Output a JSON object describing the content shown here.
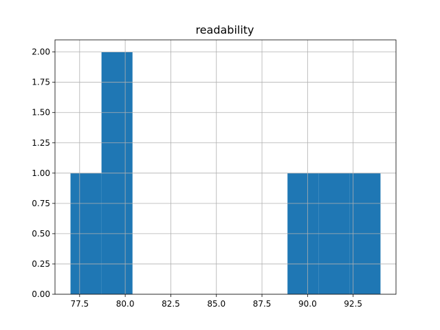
{
  "chart_data": {
    "type": "bar",
    "title": "readability",
    "xlabel": "",
    "ylabel": "",
    "xlim": [
      76.15,
      94.85
    ],
    "ylim": [
      0,
      2.1
    ],
    "grid": true,
    "bar_color": "#1f77b4",
    "bins": [
      {
        "start": 77.0,
        "end": 78.7,
        "count": 1
      },
      {
        "start": 78.7,
        "end": 80.4,
        "count": 2
      },
      {
        "start": 80.4,
        "end": 82.1,
        "count": 0
      },
      {
        "start": 82.1,
        "end": 83.8,
        "count": 0
      },
      {
        "start": 83.8,
        "end": 85.5,
        "count": 0
      },
      {
        "start": 85.5,
        "end": 87.2,
        "count": 0
      },
      {
        "start": 87.2,
        "end": 88.9,
        "count": 0
      },
      {
        "start": 88.9,
        "end": 90.6,
        "count": 1
      },
      {
        "start": 90.6,
        "end": 92.3,
        "count": 1
      },
      {
        "start": 92.3,
        "end": 94.0,
        "count": 1
      }
    ],
    "x_ticks": [
      77.5,
      80.0,
      82.5,
      85.0,
      87.5,
      90.0,
      92.5
    ],
    "x_tick_labels": [
      "77.5",
      "80.0",
      "82.5",
      "85.0",
      "87.5",
      "90.0",
      "92.5"
    ],
    "y_ticks": [
      0,
      0.25,
      0.5,
      0.75,
      1.0,
      1.25,
      1.5,
      1.75,
      2.0
    ],
    "y_tick_labels": [
      "0.00",
      "0.25",
      "0.50",
      "0.75",
      "1.00",
      "1.25",
      "1.50",
      "1.75",
      "2.00"
    ]
  }
}
